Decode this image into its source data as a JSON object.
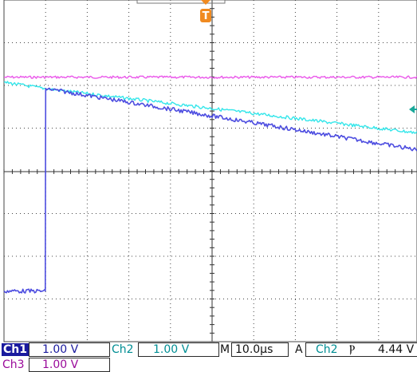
{
  "colors": {
    "ch1": "#4d4de0",
    "ch2": "#33e6ea",
    "ch3": "#ea58ea",
    "grid": "#444444",
    "trigger_marker": "#f08a20",
    "ch2_marker": "#1aa89a"
  },
  "readouts": {
    "ch1_label": "Ch1",
    "ch1_scale": "1.00 V",
    "ch2_label": "Ch2",
    "ch2_scale": "1.00 V",
    "timebase_label": "M",
    "timebase": "10.0µs",
    "trigger_mode": "A",
    "trigger_source": "Ch2",
    "trigger_slope": "Ⲣ",
    "trigger_level": "4.44 V",
    "ch3_label": "Ch3",
    "ch3_scale": "1.00 V"
  },
  "markers": {
    "trigger_glyph": "T",
    "trigger_icon": "trigger-position-icon",
    "ch2_level_icon": "ch2-level-arrow-icon"
  },
  "chart_data": {
    "type": "line",
    "x_unit": "s",
    "xlim": [
      -5e-06,
      9.5e-05
    ],
    "ylim": [
      -4.5,
      3.6
    ],
    "grid": true,
    "series": [
      {
        "name": "Ch1",
        "x": [
          -5e-06,
          5e-06,
          5.1e-06,
          9.5e-05
        ],
        "y": [
          -3.3,
          -3.3,
          1.5,
          0.05
        ]
      },
      {
        "name": "Ch2",
        "x": [
          -5e-06,
          5e-06,
          9.5e-05
        ],
        "y": [
          1.65,
          1.5,
          0.45
        ]
      },
      {
        "name": "Ch3",
        "x": [
          -5e-06,
          9.5e-05
        ],
        "y": [
          1.77,
          1.77
        ]
      }
    ]
  }
}
